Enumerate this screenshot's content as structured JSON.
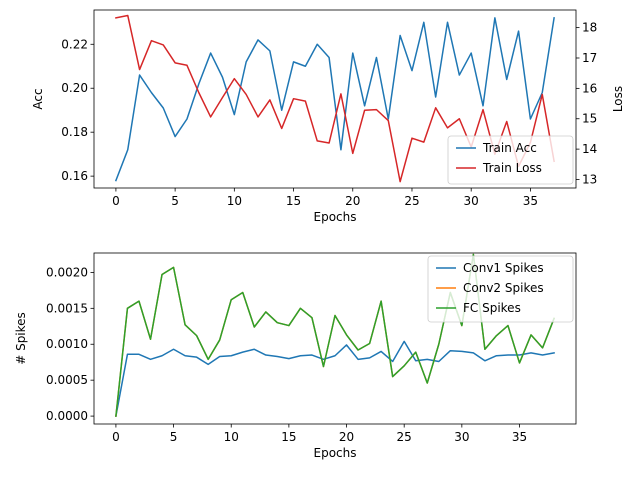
{
  "chart_data": [
    {
      "type": "line",
      "xlabel": "Epochs",
      "ylabel": "Acc",
      "ylabel_right": "Loss",
      "xlim": [
        -1.85,
        38.85
      ],
      "ylim": [
        0.1546,
        0.2356
      ],
      "ylim_right": [
        12.72,
        18.58
      ],
      "x_ticks": [
        0,
        5,
        10,
        15,
        20,
        25,
        30,
        35
      ],
      "x_tick_labels": [
        "0",
        "5",
        "10",
        "15",
        "20",
        "25",
        "30",
        "35"
      ],
      "y_ticks": [
        0.16,
        0.18,
        0.2,
        0.22
      ],
      "y_tick_labels": [
        "0.16",
        "0.18",
        "0.20",
        "0.22"
      ],
      "y_ticks_right": [
        13,
        14,
        15,
        16,
        17,
        18
      ],
      "y_tick_labels_right": [
        "13",
        "14",
        "15",
        "16",
        "17",
        "18"
      ],
      "grid": false,
      "legend_position": "bottom-right",
      "series": [
        {
          "name": "Train Acc",
          "axis": "left",
          "color": "#1f77b4",
          "x": [
            0,
            1,
            2,
            3,
            4,
            5,
            6,
            7,
            8,
            9,
            10,
            11,
            12,
            13,
            14,
            15,
            16,
            17,
            18,
            19,
            20,
            21,
            22,
            23,
            24,
            25,
            26,
            27,
            28,
            29,
            30,
            31,
            32,
            33,
            34,
            35,
            36,
            37
          ],
          "values": [
            0.158,
            0.172,
            0.206,
            0.198,
            0.191,
            0.178,
            0.186,
            0.202,
            0.216,
            0.205,
            0.188,
            0.212,
            0.222,
            0.217,
            0.19,
            0.212,
            0.21,
            0.22,
            0.214,
            0.172,
            0.216,
            0.192,
            0.214,
            0.186,
            0.224,
            0.208,
            0.23,
            0.196,
            0.23,
            0.206,
            0.216,
            0.192,
            0.232,
            0.204,
            0.226,
            0.186,
            0.198,
            0.232
          ]
        },
        {
          "name": "Train Loss",
          "axis": "right",
          "color": "#d62728",
          "x": [
            0,
            1,
            2,
            3,
            4,
            5,
            6,
            7,
            8,
            9,
            10,
            11,
            12,
            13,
            14,
            15,
            16,
            17,
            18,
            19,
            20,
            21,
            22,
            23,
            24,
            25,
            26,
            27,
            28,
            29,
            30,
            31,
            32,
            33,
            34,
            35,
            36,
            37
          ],
          "values": [
            18.32,
            18.4,
            16.62,
            17.57,
            17.43,
            16.84,
            16.76,
            15.86,
            15.06,
            15.7,
            16.32,
            15.8,
            15.06,
            15.62,
            14.68,
            15.66,
            15.58,
            14.27,
            14.2,
            15.82,
            13.86,
            15.28,
            15.3,
            14.94,
            12.93,
            14.36,
            14.23,
            15.36,
            14.7,
            15.0,
            14.07,
            15.3,
            13.83,
            14.91,
            13.43,
            14.22,
            15.8,
            13.6
          ]
        }
      ]
    },
    {
      "type": "line",
      "xlabel": "Epochs",
      "ylabel": "# Spikes",
      "xlim": [
        -1.9,
        39.9
      ],
      "ylim": [
        -0.00011,
        0.00227
      ],
      "x_ticks": [
        0,
        5,
        10,
        15,
        20,
        25,
        30,
        35
      ],
      "x_tick_labels": [
        "0",
        "5",
        "10",
        "15",
        "20",
        "25",
        "30",
        "35"
      ],
      "y_ticks": [
        0.0,
        0.0005,
        0.001,
        0.0015,
        0.002
      ],
      "y_tick_labels": [
        "0.0000",
        "0.0005",
        "0.0010",
        "0.0015",
        "0.0020"
      ],
      "grid": false,
      "legend_position": "top-right",
      "series": [
        {
          "name": "Conv1 Spikes",
          "color": "#1f77b4",
          "x": [
            0,
            1,
            2,
            3,
            4,
            5,
            6,
            7,
            8,
            9,
            10,
            11,
            12,
            13,
            14,
            15,
            16,
            17,
            18,
            19,
            20,
            21,
            22,
            23,
            24,
            25,
            26,
            27,
            28,
            29,
            30,
            31,
            32,
            33,
            34,
            35,
            36,
            37,
            38
          ],
          "values": [
            0.0,
            0.00086,
            0.00086,
            0.00079,
            0.00084,
            0.00093,
            0.00084,
            0.00082,
            0.00072,
            0.00083,
            0.00084,
            0.00089,
            0.00093,
            0.00085,
            0.00083,
            0.0008,
            0.00084,
            0.00085,
            0.00079,
            0.00084,
            0.00099,
            0.00079,
            0.00081,
            0.0009,
            0.00076,
            0.00104,
            0.00077,
            0.00079,
            0.00076,
            0.00091,
            0.0009,
            0.00088,
            0.00077,
            0.00084,
            0.00085,
            0.00085,
            0.00088,
            0.00085,
            0.00088
          ]
        },
        {
          "name": "Conv2 Spikes",
          "color": "#ff7f0e",
          "x": [
            0,
            1,
            2,
            3,
            4,
            5,
            6,
            7,
            8,
            9,
            10,
            11,
            12,
            13,
            14,
            15,
            16,
            17,
            18,
            19,
            20,
            21,
            22,
            23,
            24,
            25,
            26,
            27,
            28,
            29,
            30,
            31,
            32,
            33,
            34,
            35,
            36,
            37,
            38
          ],
          "values": [
            0.0,
            0.0015,
            0.0016,
            0.00107,
            0.00197,
            0.00207,
            0.00127,
            0.00112,
            0.00079,
            0.00106,
            0.00162,
            0.00172,
            0.00124,
            0.00145,
            0.0013,
            0.00126,
            0.0015,
            0.00137,
            0.00069,
            0.0014,
            0.00113,
            0.00092,
            0.00101,
            0.0016,
            0.00055,
            0.0007,
            0.00089,
            0.00046,
            0.001,
            0.00172,
            0.00126,
            0.00225,
            0.00093,
            0.00112,
            0.00126,
            0.00074,
            0.00113,
            0.00095,
            0.00136
          ]
        },
        {
          "name": "FC Spikes",
          "color": "#2ca02c",
          "x": [
            0,
            1,
            2,
            3,
            4,
            5,
            6,
            7,
            8,
            9,
            10,
            11,
            12,
            13,
            14,
            15,
            16,
            17,
            18,
            19,
            20,
            21,
            22,
            23,
            24,
            25,
            26,
            27,
            28,
            29,
            30,
            31,
            32,
            33,
            34,
            35,
            36,
            37,
            38
          ],
          "values": [
            0.0,
            0.0015,
            0.0016,
            0.00107,
            0.00197,
            0.00207,
            0.00127,
            0.00112,
            0.00079,
            0.00106,
            0.00162,
            0.00172,
            0.00124,
            0.00145,
            0.0013,
            0.00126,
            0.0015,
            0.00137,
            0.00069,
            0.0014,
            0.00113,
            0.00092,
            0.00101,
            0.0016,
            0.00055,
            0.0007,
            0.00089,
            0.00046,
            0.001,
            0.00172,
            0.00126,
            0.00225,
            0.00093,
            0.00112,
            0.00126,
            0.00074,
            0.00113,
            0.00095,
            0.00136
          ]
        }
      ]
    }
  ]
}
